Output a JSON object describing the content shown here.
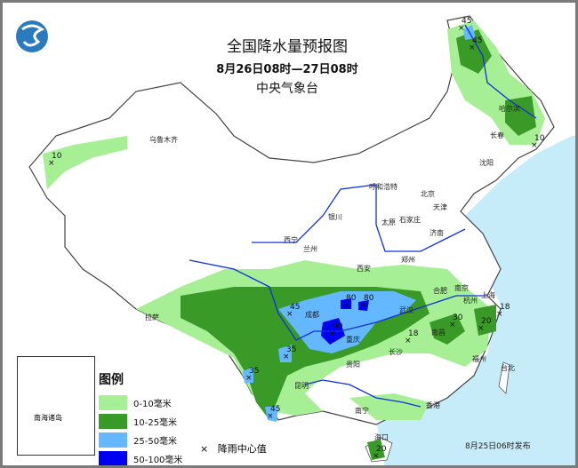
{
  "header": {
    "title": "全国降水量预报图",
    "period": "8月26日08时—27日08时",
    "issuer": "中央气象台",
    "logo": "cma-logo"
  },
  "legend": {
    "title": "图例",
    "items": [
      {
        "label": "0-10毫米",
        "color": "#a6ef94"
      },
      {
        "label": "10-25毫米",
        "color": "#3a9a28"
      },
      {
        "label": "25-50毫米",
        "color": "#63b8ff"
      },
      {
        "label": "50-100毫米",
        "color": "#0000f0"
      }
    ],
    "center_symbol": "×",
    "center_label": "降雨中心值"
  },
  "inset": {
    "label": "南海诸岛"
  },
  "published": "8月25日06时发布",
  "colors": {
    "sea": "#c6ecfa",
    "land": "#ffffff",
    "river": "#1030e0",
    "border": "#555555"
  },
  "cities": [
    "乌鲁木齐",
    "哈尔滨",
    "长春",
    "沈阳",
    "呼和浩特",
    "北京",
    "天津",
    "太原",
    "石家庄",
    "济南",
    "银川",
    "西宁",
    "兰州",
    "西安",
    "郑州",
    "合肥",
    "南京",
    "上海",
    "杭州",
    "武汉",
    "成都",
    "重庆",
    "长沙",
    "南昌",
    "拉萨",
    "贵阳",
    "福州",
    "台北",
    "昆明",
    "南宁",
    "香港",
    "海口"
  ],
  "rain_centers": [
    "45",
    "45",
    "10",
    "10",
    "45",
    "80",
    "80",
    "90",
    "35",
    "35",
    "45",
    "18",
    "30",
    "20",
    "18",
    "20"
  ]
}
